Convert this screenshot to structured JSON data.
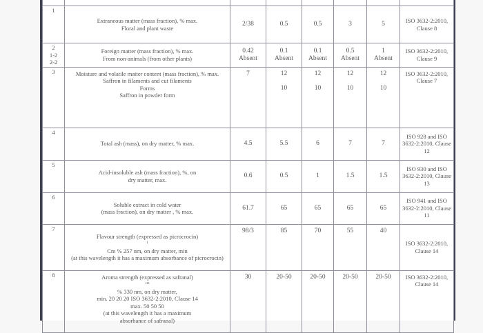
{
  "rows": [
    {
      "no": "1",
      "desc": [
        "Extraneous matter (mass fraction), % max.",
        "Floral and plant waste"
      ],
      "values": [
        "2/38",
        "0.5",
        "0.5",
        "3",
        "5"
      ],
      "method": "ISO 3632-2:2010, Clause 8"
    },
    {
      "no": "2\n1-2\n2-2",
      "desc": [
        "Foreign matter (mass fraction), % max.",
        "From non-animals (from other plants)"
      ],
      "values": [
        "0.42\nAbsent",
        "0.1\nAbsent",
        "0.1\nAbsent",
        "0.5\nAbsent",
        "1\nAbsent"
      ],
      "method": "ISO 3632-2:2010, Clause 9"
    },
    {
      "no": "3",
      "desc": [
        "Moisture and volatile matter content (mass fraction), % max.",
        "Saffron in filaments and cut filaments",
        "Forms",
        "Saffron in powder form"
      ],
      "values": [
        "7",
        "12\n\n10",
        "12\n\n10",
        "12\n\n10",
        "12\n\n10"
      ],
      "method": "ISO 3632-2:2010, Clause 7"
    },
    {
      "no": "4",
      "desc": [
        "Total ash (mass), on dry matter, % max."
      ],
      "values": [
        "4.5",
        "5.5",
        "6",
        "7",
        "7"
      ],
      "method": "ISO 928 and ISO 3632-2:2010, Clause 12"
    },
    {
      "no": "5",
      "desc": [
        "Acid-insoluble ash (mass fraction), %, on",
        "dry matter, max."
      ],
      "values": [
        "0.6",
        "0.5",
        "1",
        "1.5",
        "1.5"
      ],
      "method": "ISO 930 and ISO 3632-2:2010, Clause 13"
    },
    {
      "no": "6",
      "desc": [
        "Soluble extract in cold water",
        "(mass fraction), on dry matter , % max."
      ],
      "values": [
        "61.7",
        "65",
        "65",
        "65",
        "65"
      ],
      "method": "ISO 941 and ISO 3632-2:2010, Clause 11"
    },
    {
      "no": "7",
      "desc": [
        "Flavour strength (expressed as picrocrocin)",
        "1",
        "Cm % 257 nm, on dry matter, min",
        "(at this wavelength it has a maximum absorbance of picrocrocin)"
      ],
      "values": [
        "98/3",
        "85",
        "70",
        "55",
        "40"
      ],
      "method": "ISO 3632-2:2010, Clause 14"
    },
    {
      "no": "8",
      "desc": [
        "Aroma strength (expressed as safranal)",
        "cm",
        "% 330 nm, on dry matter,",
        "min. 20 20 20 ISO 3632-2:2010, Clause 14",
        "max. 50 50 50",
        "(at this wavelength it has a maximum",
        "absorbance of safranal)"
      ],
      "values": [
        "30",
        "20-50",
        "20-50",
        "20-50",
        "20-50"
      ],
      "method": "ISO 3632-2:2010, Clause 14"
    }
  ]
}
